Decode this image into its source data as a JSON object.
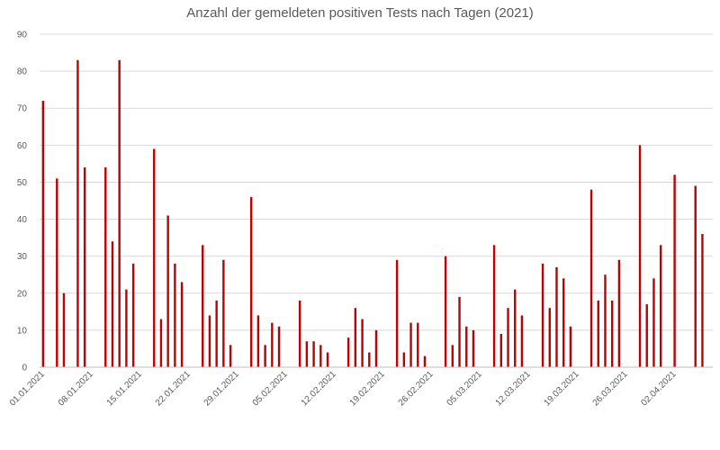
{
  "chart_data": {
    "type": "bar",
    "title": "Anzahl der gemeldeten positiven Tests nach Tagen (2021)",
    "xlabel": "",
    "ylabel": "",
    "ylim": [
      0,
      90
    ],
    "yticks": [
      0,
      10,
      20,
      30,
      40,
      50,
      60,
      70,
      80,
      90
    ],
    "grid": true,
    "bar_color": "#c00000",
    "start_date": "01.01.2021",
    "x_tick_labels": [
      "01.01.2021",
      "08.01.2021",
      "15.01.2021",
      "22.01.2021",
      "29.01.2021",
      "05.02.2021",
      "12.02.2021",
      "19.02.2021",
      "26.02.2021",
      "05.03.2021",
      "12.03.2021",
      "19.03.2021",
      "26.03.2021",
      "02.04.2021"
    ],
    "categories": [
      "01.01.2021",
      "02.01.2021",
      "03.01.2021",
      "04.01.2021",
      "05.01.2021",
      "06.01.2021",
      "07.01.2021",
      "08.01.2021",
      "09.01.2021",
      "10.01.2021",
      "11.01.2021",
      "12.01.2021",
      "13.01.2021",
      "14.01.2021",
      "15.01.2021",
      "16.01.2021",
      "17.01.2021",
      "18.01.2021",
      "19.01.2021",
      "20.01.2021",
      "21.01.2021",
      "22.01.2021",
      "23.01.2021",
      "24.01.2021",
      "25.01.2021",
      "26.01.2021",
      "27.01.2021",
      "28.01.2021",
      "29.01.2021",
      "30.01.2021",
      "31.01.2021",
      "01.02.2021",
      "02.02.2021",
      "03.02.2021",
      "04.02.2021",
      "05.02.2021",
      "06.02.2021",
      "07.02.2021",
      "08.02.2021",
      "09.02.2021",
      "10.02.2021",
      "11.02.2021",
      "12.02.2021",
      "13.02.2021",
      "14.02.2021",
      "15.02.2021",
      "16.02.2021",
      "17.02.2021",
      "18.02.2021",
      "19.02.2021",
      "20.02.2021",
      "21.02.2021",
      "22.02.2021",
      "23.02.2021",
      "24.02.2021",
      "25.02.2021",
      "26.02.2021",
      "27.02.2021",
      "28.02.2021",
      "01.03.2021",
      "02.03.2021",
      "03.03.2021",
      "04.03.2021",
      "05.03.2021",
      "06.03.2021",
      "07.03.2021",
      "08.03.2021",
      "09.03.2021",
      "10.03.2021",
      "11.03.2021",
      "12.03.2021",
      "13.03.2021",
      "14.03.2021",
      "15.03.2021",
      "16.03.2021",
      "17.03.2021",
      "18.03.2021",
      "19.03.2021",
      "20.03.2021",
      "21.03.2021",
      "22.03.2021",
      "23.03.2021",
      "24.03.2021",
      "25.03.2021",
      "26.03.2021",
      "27.03.2021",
      "28.03.2021",
      "29.03.2021",
      "30.03.2021",
      "31.03.2021",
      "01.04.2021",
      "02.04.2021",
      "03.04.2021",
      "04.04.2021",
      "05.04.2021",
      "06.04.2021",
      "07.04.2021"
    ],
    "values": [
      72,
      0,
      51,
      20,
      0,
      83,
      54,
      0,
      0,
      54,
      34,
      83,
      21,
      28,
      0,
      0,
      59,
      13,
      41,
      28,
      23,
      0,
      0,
      33,
      14,
      18,
      29,
      6,
      0,
      0,
      46,
      14,
      6,
      12,
      11,
      0,
      0,
      18,
      7,
      7,
      6,
      4,
      0,
      0,
      8,
      16,
      13,
      4,
      10,
      0,
      0,
      29,
      4,
      12,
      12,
      3,
      0,
      0,
      30,
      6,
      19,
      11,
      10,
      0,
      0,
      33,
      9,
      16,
      21,
      14,
      0,
      0,
      28,
      16,
      27,
      24,
      11,
      0,
      0,
      48,
      18,
      25,
      18,
      29,
      0,
      0,
      60,
      17,
      24,
      33,
      0,
      52,
      0,
      0,
      49,
      36,
      0
    ]
  }
}
